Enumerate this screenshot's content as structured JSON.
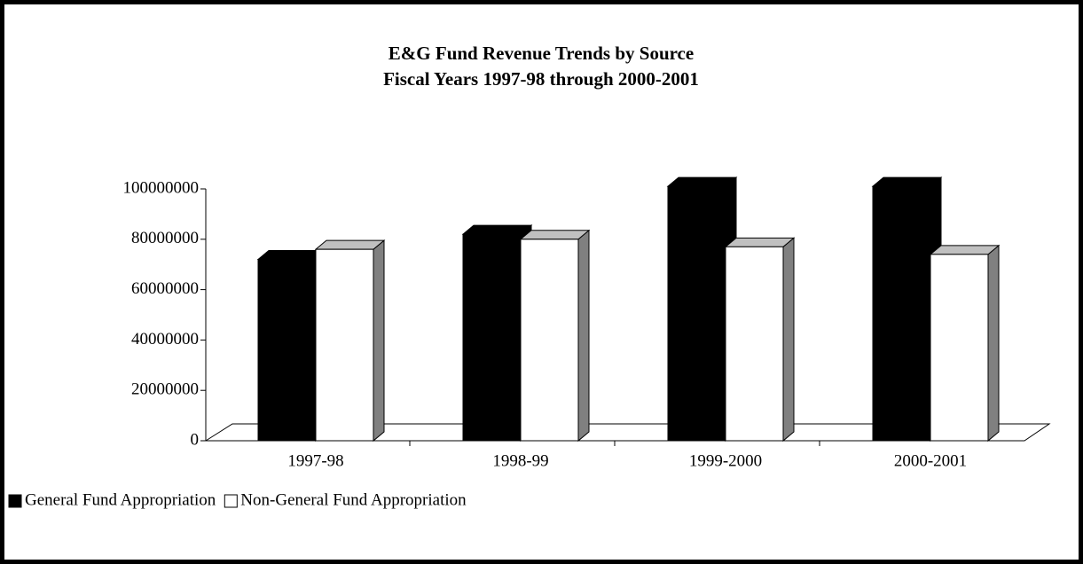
{
  "chart_data": {
    "type": "bar3d",
    "title": "E&G Fund Revenue Trends by Source",
    "subtitle": "Fiscal Years 1997-98 through 2000-2001",
    "categories": [
      "1997-98",
      "1998-99",
      "1999-2000",
      "2000-2001"
    ],
    "series": [
      {
        "name": "General Fund Appropriation",
        "color": "#000000",
        "values": [
          72000000,
          82000000,
          101000000,
          101000000
        ]
      },
      {
        "name": "Non-General Fund Appropriation",
        "color": "#ffffff",
        "values": [
          76000000,
          80000000,
          77000000,
          74000000
        ]
      }
    ],
    "ylim": [
      0,
      100000000
    ],
    "yticks": [
      0,
      20000000,
      40000000,
      60000000,
      80000000,
      100000000
    ],
    "legend": "bottom-left"
  }
}
